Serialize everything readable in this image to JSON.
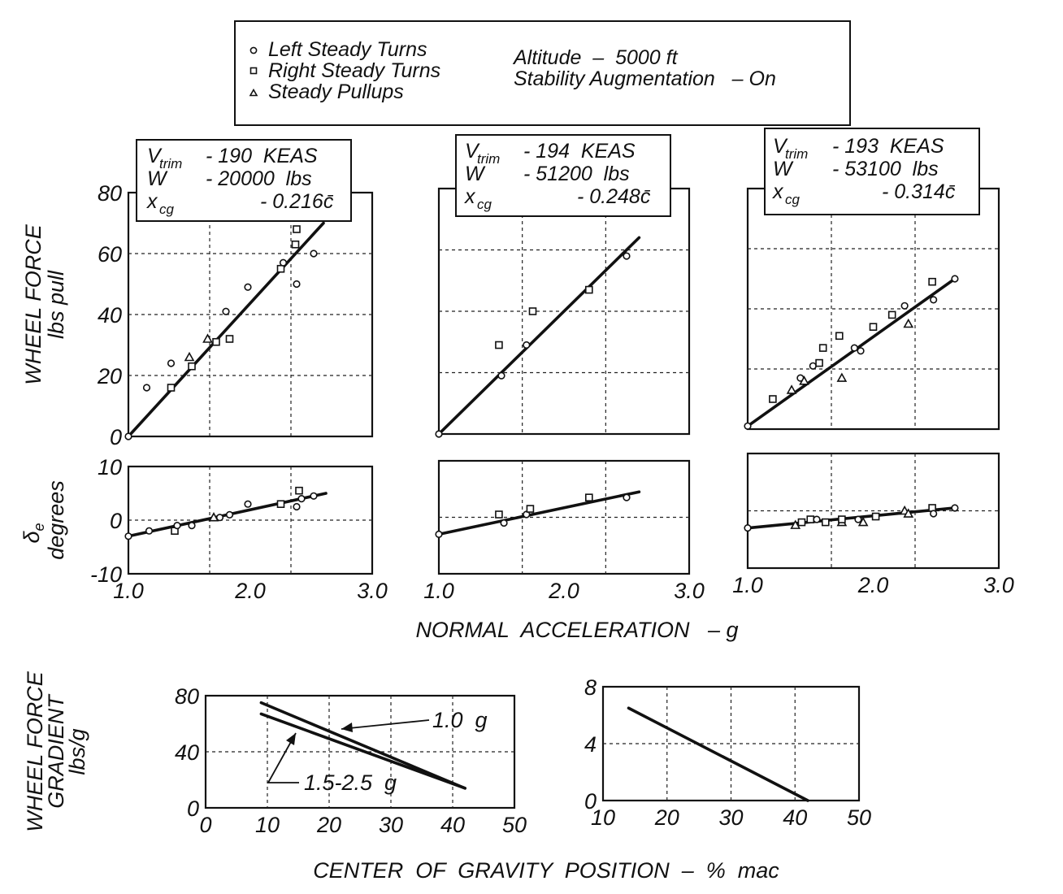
{
  "legend": {
    "items": [
      {
        "marker": "circle",
        "label": "Left Steady Turns"
      },
      {
        "marker": "square",
        "label": "Right Steady Turns"
      },
      {
        "marker": "triangle",
        "label": "Steady Pullups"
      }
    ],
    "altitude": "Altitude  –  5000 ft",
    "stability": "Stability Augmentation   – On"
  },
  "shared_labels": {
    "wheel_force_1": "WHEEL FORCE",
    "wheel_force_2": "lbs pull",
    "delta_sym": "δ",
    "delta_sub": "e",
    "delta_2": "degrees",
    "normal_accel": "NORMAL  ACCELERATION   – g",
    "gradient_1": "WHEEL FORCE",
    "gradient_2": "GRADIENT",
    "gradient_3": "lbs/g",
    "cg_position": "CENTER  OF  GRAVITY  POSITION  –  %  mac"
  },
  "conditions": [
    {
      "v": "V",
      "v_sub": "trim",
      "v_val": "- 190  KEAS",
      "w": "W",
      "w_val": "- 20000  lbs",
      "x": "x",
      "x_sub": "cg",
      "x_val": "- 0.216c̄"
    },
    {
      "v": "V",
      "v_sub": "trim",
      "v_val": "- 194  KEAS",
      "w": "W",
      "w_val": "- 51200  lbs",
      "x": "x",
      "x_sub": "cg",
      "x_val": "- 0.248c̄"
    },
    {
      "v": "V",
      "v_sub": "trim",
      "v_val": "- 193  KEAS",
      "w": "W",
      "w_val": "- 53100  lbs",
      "x": "x",
      "x_sub": "cg",
      "x_val": "- 0.314c̄"
    }
  ],
  "chart_data": [
    {
      "type": "scatter",
      "panel": "force-1",
      "xlim": [
        1.0,
        3.0
      ],
      "ylim": [
        0,
        80
      ],
      "xticks": [],
      "yticks": [
        "80",
        "60",
        "40",
        "20",
        "0"
      ],
      "fit": [
        [
          1.0,
          0
        ],
        [
          2.6,
          70
        ]
      ],
      "points": [
        {
          "m": "circle",
          "x": 1.0,
          "y": 0
        },
        {
          "m": "circle",
          "x": 1.15,
          "y": 16
        },
        {
          "m": "circle",
          "x": 1.35,
          "y": 24
        },
        {
          "m": "square",
          "x": 1.35,
          "y": 16
        },
        {
          "m": "triangle",
          "x": 1.5,
          "y": 26
        },
        {
          "m": "square",
          "x": 1.52,
          "y": 23
        },
        {
          "m": "triangle",
          "x": 1.65,
          "y": 32
        },
        {
          "m": "square",
          "x": 1.72,
          "y": 31
        },
        {
          "m": "circle",
          "x": 1.8,
          "y": 41
        },
        {
          "m": "square",
          "x": 1.83,
          "y": 32
        },
        {
          "m": "circle",
          "x": 1.98,
          "y": 49
        },
        {
          "m": "square",
          "x": 2.25,
          "y": 55
        },
        {
          "m": "circle",
          "x": 2.27,
          "y": 57
        },
        {
          "m": "square",
          "x": 2.37,
          "y": 63
        },
        {
          "m": "square",
          "x": 2.38,
          "y": 68
        },
        {
          "m": "circle",
          "x": 2.38,
          "y": 50
        },
        {
          "m": "circle",
          "x": 2.52,
          "y": 60
        }
      ]
    },
    {
      "type": "scatter",
      "panel": "force-2",
      "xlim": [
        1.0,
        3.0
      ],
      "ylim": [
        0,
        80
      ],
      "xticks": [],
      "yticks": [],
      "fit": [
        [
          1.0,
          0
        ],
        [
          2.6,
          64
        ]
      ],
      "points": [
        {
          "m": "circle",
          "x": 1.0,
          "y": 0
        },
        {
          "m": "square",
          "x": 1.48,
          "y": 29
        },
        {
          "m": "circle",
          "x": 1.5,
          "y": 19
        },
        {
          "m": "circle",
          "x": 1.7,
          "y": 29
        },
        {
          "m": "square",
          "x": 1.75,
          "y": 40
        },
        {
          "m": "square",
          "x": 2.2,
          "y": 47
        },
        {
          "m": "circle",
          "x": 2.5,
          "y": 58
        }
      ]
    },
    {
      "type": "scatter",
      "panel": "force-3",
      "xlim": [
        1.0,
        3.0
      ],
      "ylim": [
        0,
        80
      ],
      "xticks": [],
      "yticks": [],
      "fit": [
        [
          1.0,
          1
        ],
        [
          2.65,
          50
        ]
      ],
      "points": [
        {
          "m": "circle",
          "x": 1.0,
          "y": 1
        },
        {
          "m": "square",
          "x": 1.2,
          "y": 10
        },
        {
          "m": "triangle",
          "x": 1.35,
          "y": 13
        },
        {
          "m": "circle",
          "x": 1.42,
          "y": 17
        },
        {
          "m": "triangle",
          "x": 1.45,
          "y": 16
        },
        {
          "m": "circle",
          "x": 1.52,
          "y": 21
        },
        {
          "m": "square",
          "x": 1.57,
          "y": 22
        },
        {
          "m": "square",
          "x": 1.6,
          "y": 27
        },
        {
          "m": "triangle",
          "x": 1.75,
          "y": 17
        },
        {
          "m": "square",
          "x": 1.73,
          "y": 31
        },
        {
          "m": "circle",
          "x": 1.85,
          "y": 27
        },
        {
          "m": "circle",
          "x": 1.9,
          "y": 26
        },
        {
          "m": "square",
          "x": 2.0,
          "y": 34
        },
        {
          "m": "square",
          "x": 2.15,
          "y": 38
        },
        {
          "m": "circle",
          "x": 2.25,
          "y": 41
        },
        {
          "m": "triangle",
          "x": 2.28,
          "y": 35
        },
        {
          "m": "square",
          "x": 2.47,
          "y": 49
        },
        {
          "m": "circle",
          "x": 2.48,
          "y": 43
        },
        {
          "m": "circle",
          "x": 2.65,
          "y": 50
        }
      ]
    },
    {
      "type": "scatter",
      "panel": "elev-1",
      "xlim": [
        1.0,
        3.0
      ],
      "ylim": [
        -10,
        10
      ],
      "xticks": [
        "1.0",
        "2.0",
        "3.0"
      ],
      "yticks": [
        "10",
        "0",
        "-10"
      ],
      "fit": [
        [
          1.0,
          -3
        ],
        [
          2.62,
          5
        ]
      ],
      "points": [
        {
          "m": "circle",
          "x": 1.0,
          "y": -3
        },
        {
          "m": "circle",
          "x": 1.17,
          "y": -2
        },
        {
          "m": "square",
          "x": 1.38,
          "y": -2
        },
        {
          "m": "circle",
          "x": 1.4,
          "y": -1
        },
        {
          "m": "circle",
          "x": 1.52,
          "y": -1
        },
        {
          "m": "triangle",
          "x": 1.7,
          "y": 0.5
        },
        {
          "m": "circle",
          "x": 1.75,
          "y": 0.5
        },
        {
          "m": "circle",
          "x": 1.83,
          "y": 1
        },
        {
          "m": "circle",
          "x": 1.98,
          "y": 3
        },
        {
          "m": "square",
          "x": 2.25,
          "y": 3
        },
        {
          "m": "circle",
          "x": 2.38,
          "y": 2.5
        },
        {
          "m": "square",
          "x": 2.4,
          "y": 5.5
        },
        {
          "m": "circle",
          "x": 2.42,
          "y": 4
        },
        {
          "m": "circle",
          "x": 2.52,
          "y": 4.5
        }
      ]
    },
    {
      "type": "scatter",
      "panel": "elev-2",
      "xlim": [
        1.0,
        3.0
      ],
      "ylim": [
        -10,
        10
      ],
      "xticks": [
        "1.0",
        "2.0",
        "3.0"
      ],
      "yticks": [],
      "fit": [
        [
          1.0,
          -3
        ],
        [
          2.6,
          4.5
        ]
      ],
      "points": [
        {
          "m": "circle",
          "x": 1.0,
          "y": -3
        },
        {
          "m": "square",
          "x": 1.48,
          "y": 0.5
        },
        {
          "m": "circle",
          "x": 1.52,
          "y": -1
        },
        {
          "m": "circle",
          "x": 1.7,
          "y": 0.5
        },
        {
          "m": "square",
          "x": 1.73,
          "y": 1.5
        },
        {
          "m": "square",
          "x": 2.2,
          "y": 3.5
        },
        {
          "m": "circle",
          "x": 2.5,
          "y": 3.5
        }
      ]
    },
    {
      "type": "scatter",
      "panel": "elev-3",
      "xlim": [
        1.0,
        3.0
      ],
      "ylim": [
        -10,
        10
      ],
      "xticks": [
        "1.0",
        "2.0",
        "3.0"
      ],
      "yticks": [],
      "fit": [
        [
          1.0,
          -3
        ],
        [
          2.65,
          0.5
        ]
      ],
      "points": [
        {
          "m": "circle",
          "x": 1.0,
          "y": -3
        },
        {
          "m": "triangle",
          "x": 1.38,
          "y": -2.5
        },
        {
          "m": "square",
          "x": 1.43,
          "y": -2
        },
        {
          "m": "square",
          "x": 1.5,
          "y": -1.5
        },
        {
          "m": "circle",
          "x": 1.55,
          "y": -1.5
        },
        {
          "m": "square",
          "x": 1.62,
          "y": -2
        },
        {
          "m": "triangle",
          "x": 1.75,
          "y": -2
        },
        {
          "m": "square",
          "x": 1.75,
          "y": -1.5
        },
        {
          "m": "circle",
          "x": 1.88,
          "y": -1.5
        },
        {
          "m": "triangle",
          "x": 1.92,
          "y": -2
        },
        {
          "m": "square",
          "x": 2.02,
          "y": -1
        },
        {
          "m": "triangle",
          "x": 2.25,
          "y": 0
        },
        {
          "m": "triangle",
          "x": 2.28,
          "y": -0.5
        },
        {
          "m": "square",
          "x": 2.47,
          "y": 0.5
        },
        {
          "m": "circle",
          "x": 2.48,
          "y": -0.5
        },
        {
          "m": "circle",
          "x": 2.65,
          "y": 0.5
        }
      ]
    },
    {
      "type": "line",
      "panel": "grad-1",
      "xlim": [
        0,
        50
      ],
      "ylim": [
        0,
        80
      ],
      "xticks": [
        "0",
        "10",
        "20",
        "30",
        "40",
        "50"
      ],
      "yticks": [
        "80",
        "40",
        "0"
      ],
      "series": [
        {
          "name": "1.0  g",
          "points": [
            [
              9,
              75
            ],
            [
              42,
              14
            ]
          ]
        },
        {
          "name": "1.5-2.5  g",
          "points": [
            [
              9,
              67
            ],
            [
              42,
              14
            ]
          ]
        }
      ]
    },
    {
      "type": "line",
      "panel": "grad-2",
      "xlim": [
        10,
        50
      ],
      "ylim": [
        0,
        8
      ],
      "xticks": [
        "10",
        "20",
        "30",
        "40",
        "50"
      ],
      "yticks": [
        "8",
        "4",
        "0"
      ],
      "series": [
        {
          "points": [
            [
              14,
              6.5
            ],
            [
              42,
              0
            ]
          ]
        }
      ]
    }
  ]
}
